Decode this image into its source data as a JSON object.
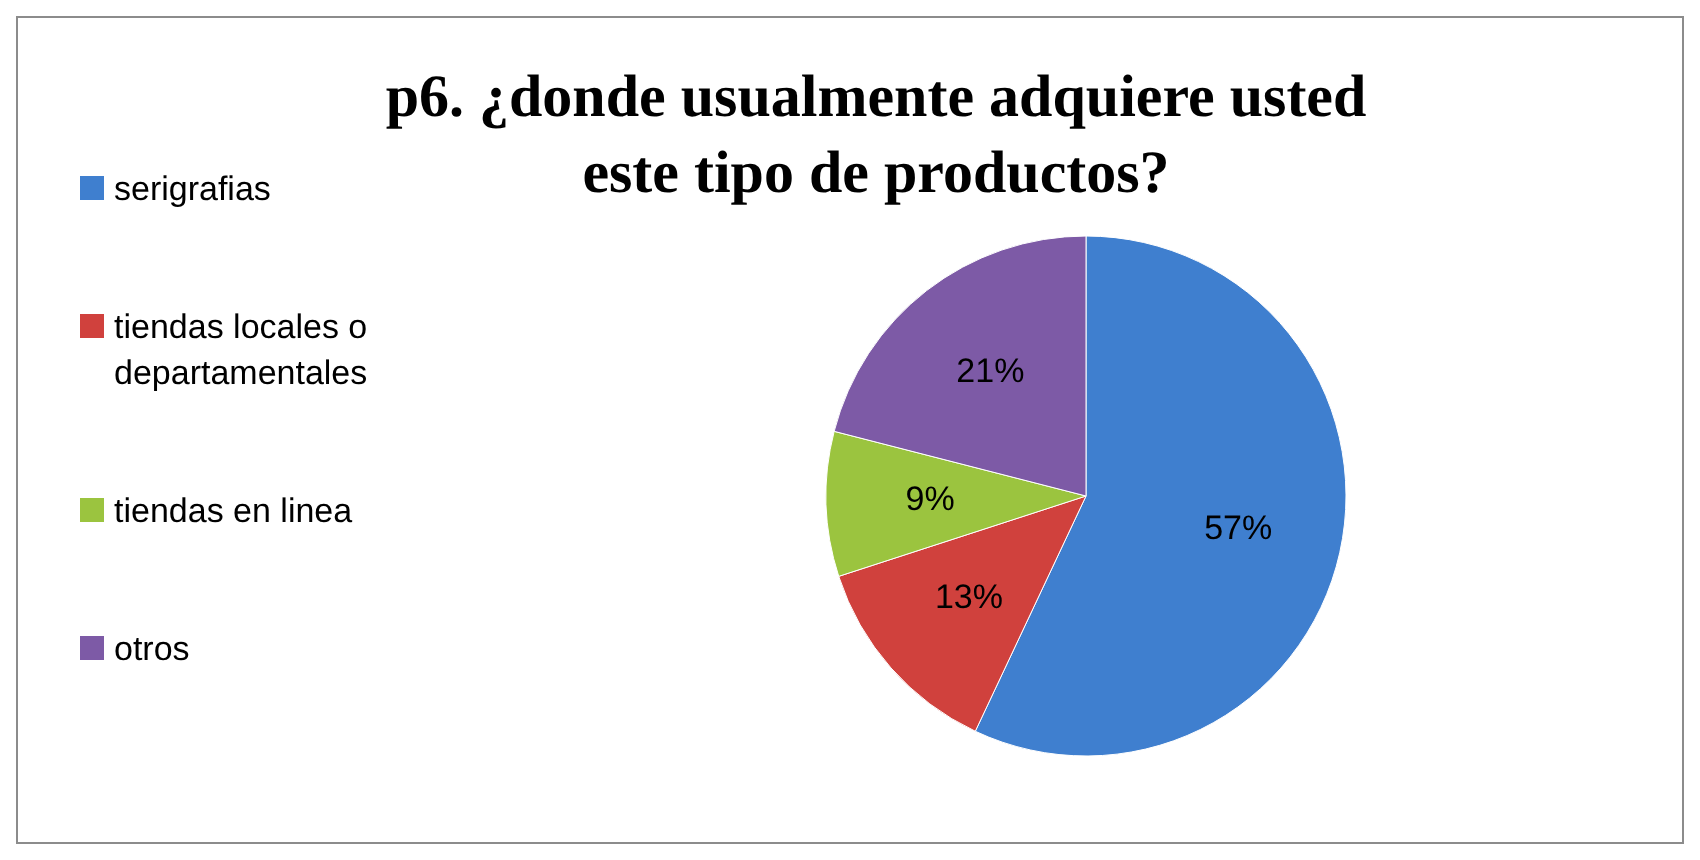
{
  "chart_data": {
    "type": "pie",
    "title": "p6. ¿donde usualmente adquiere usted este tipo de productos?",
    "categories": [
      "serigrafias",
      "tiendas locales o departamentales",
      "tiendas en linea",
      "otros"
    ],
    "values": [
      57,
      13,
      9,
      21
    ],
    "colors": [
      "#3f7fcf",
      "#d0413d",
      "#9bc43f",
      "#7d5aa6"
    ],
    "value_labels": [
      "57%",
      "13%",
      "9%",
      "21%"
    ],
    "legend": "left"
  }
}
